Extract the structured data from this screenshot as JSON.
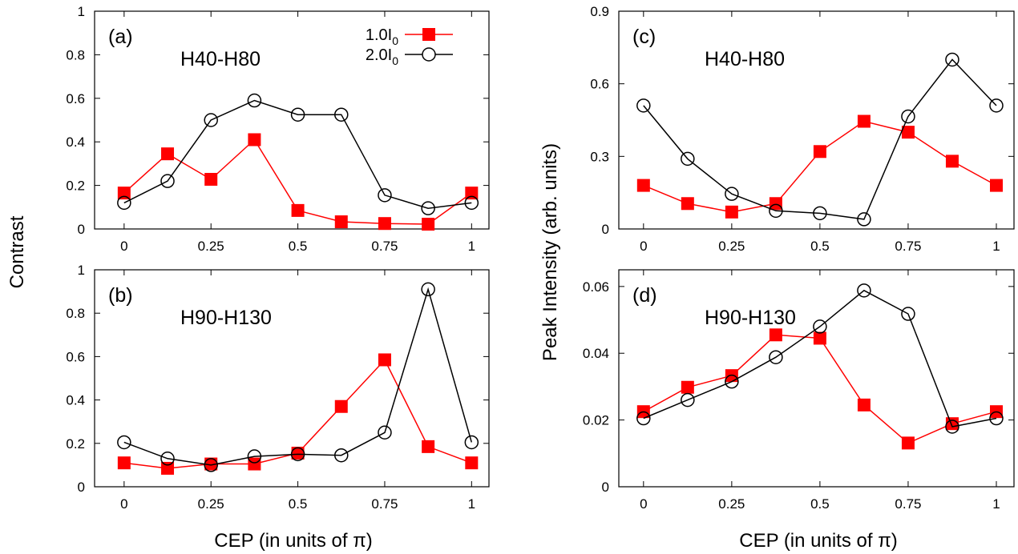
{
  "figure": {
    "xlabel": "CEP (in units of π)",
    "ylabel_left": "Contrast",
    "ylabel_right": "Peak Intensity (arb. units)"
  },
  "legend": [
    {
      "label": "1.0I",
      "sub": "0",
      "color": "#ff0000",
      "marker": "filled-square"
    },
    {
      "label": "2.0I",
      "sub": "0",
      "color": "#000000",
      "marker": "open-circle"
    }
  ],
  "chart_data": [
    {
      "type": "line",
      "panel_label": "(a)",
      "annotation": "H40-H80",
      "x": [
        0,
        0.125,
        0.25,
        0.375,
        0.5,
        0.625,
        0.75,
        0.875,
        1
      ],
      "xlim": [
        -0.085,
        1.05
      ],
      "ylim": [
        0,
        1
      ],
      "xticks": [
        "0",
        "0.25",
        "0.5",
        "0.75",
        "1"
      ],
      "yticks": [
        "0",
        "0.2",
        "0.4",
        "0.6",
        "0.8",
        "1"
      ],
      "series": [
        {
          "name": "1.0I0",
          "color": "#ff0000",
          "marker": "filled-square",
          "values": [
            0.165,
            0.345,
            0.228,
            0.41,
            0.085,
            0.033,
            0.025,
            0.022,
            0.165
          ]
        },
        {
          "name": "2.0I0",
          "color": "#000000",
          "marker": "open-circle",
          "values": [
            0.12,
            0.22,
            0.5,
            0.59,
            0.525,
            0.525,
            0.155,
            0.095,
            0.12
          ]
        }
      ]
    },
    {
      "type": "line",
      "panel_label": "(b)",
      "annotation": "H90-H130",
      "x": [
        0,
        0.125,
        0.25,
        0.375,
        0.5,
        0.625,
        0.75,
        0.875,
        1
      ],
      "xlim": [
        -0.085,
        1.05
      ],
      "ylim": [
        0,
        1
      ],
      "xticks": [
        "0",
        "0.25",
        "0.5",
        "0.75",
        "1"
      ],
      "yticks": [
        "0",
        "0.2",
        "0.4",
        "0.6",
        "0.8",
        "1"
      ],
      "series": [
        {
          "name": "1.0I0",
          "color": "#ff0000",
          "marker": "filled-square",
          "values": [
            0.11,
            0.085,
            0.105,
            0.105,
            0.155,
            0.37,
            0.585,
            0.185,
            0.11
          ]
        },
        {
          "name": "2.0I0",
          "color": "#000000",
          "marker": "open-circle",
          "values": [
            0.205,
            0.13,
            0.1,
            0.14,
            0.15,
            0.145,
            0.25,
            0.91,
            0.205
          ]
        }
      ]
    },
    {
      "type": "line",
      "panel_label": "(c)",
      "annotation": "H40-H80",
      "x": [
        0,
        0.125,
        0.25,
        0.375,
        0.5,
        0.625,
        0.75,
        0.875,
        1
      ],
      "xlim": [
        -0.07,
        1.05
      ],
      "ylim": [
        0,
        0.9
      ],
      "xticks": [
        "0",
        "0.25",
        "0.5",
        "0.75",
        "1"
      ],
      "yticks": [
        "0",
        "0.3",
        "0.6",
        "0.9"
      ],
      "series": [
        {
          "name": "1.0I0",
          "color": "#ff0000",
          "marker": "filled-square",
          "values": [
            0.18,
            0.105,
            0.07,
            0.105,
            0.32,
            0.445,
            0.4,
            0.28,
            0.18
          ]
        },
        {
          "name": "2.0I0",
          "color": "#000000",
          "marker": "open-circle",
          "values": [
            0.51,
            0.29,
            0.145,
            0.075,
            0.065,
            0.04,
            0.465,
            0.7,
            0.51
          ]
        }
      ]
    },
    {
      "type": "line",
      "panel_label": "(d)",
      "annotation": "H90-H130",
      "x": [
        0,
        0.125,
        0.25,
        0.375,
        0.5,
        0.625,
        0.75,
        0.875,
        1
      ],
      "xlim": [
        -0.07,
        1.05
      ],
      "ylim": [
        0,
        0.065
      ],
      "xticks": [
        "0",
        "0.25",
        "0.5",
        "0.75",
        "1"
      ],
      "yticks": [
        "0",
        "0.02",
        "0.04",
        "0.06"
      ],
      "series": [
        {
          "name": "1.0I0",
          "color": "#ff0000",
          "marker": "filled-square",
          "values": [
            0.0225,
            0.0298,
            0.0333,
            0.0455,
            0.0445,
            0.0245,
            0.0131,
            0.0189,
            0.0225
          ]
        },
        {
          "name": "2.0I0",
          "color": "#000000",
          "marker": "open-circle",
          "values": [
            0.0205,
            0.026,
            0.0315,
            0.0388,
            0.048,
            0.0588,
            0.0518,
            0.018,
            0.0205
          ]
        }
      ]
    }
  ]
}
